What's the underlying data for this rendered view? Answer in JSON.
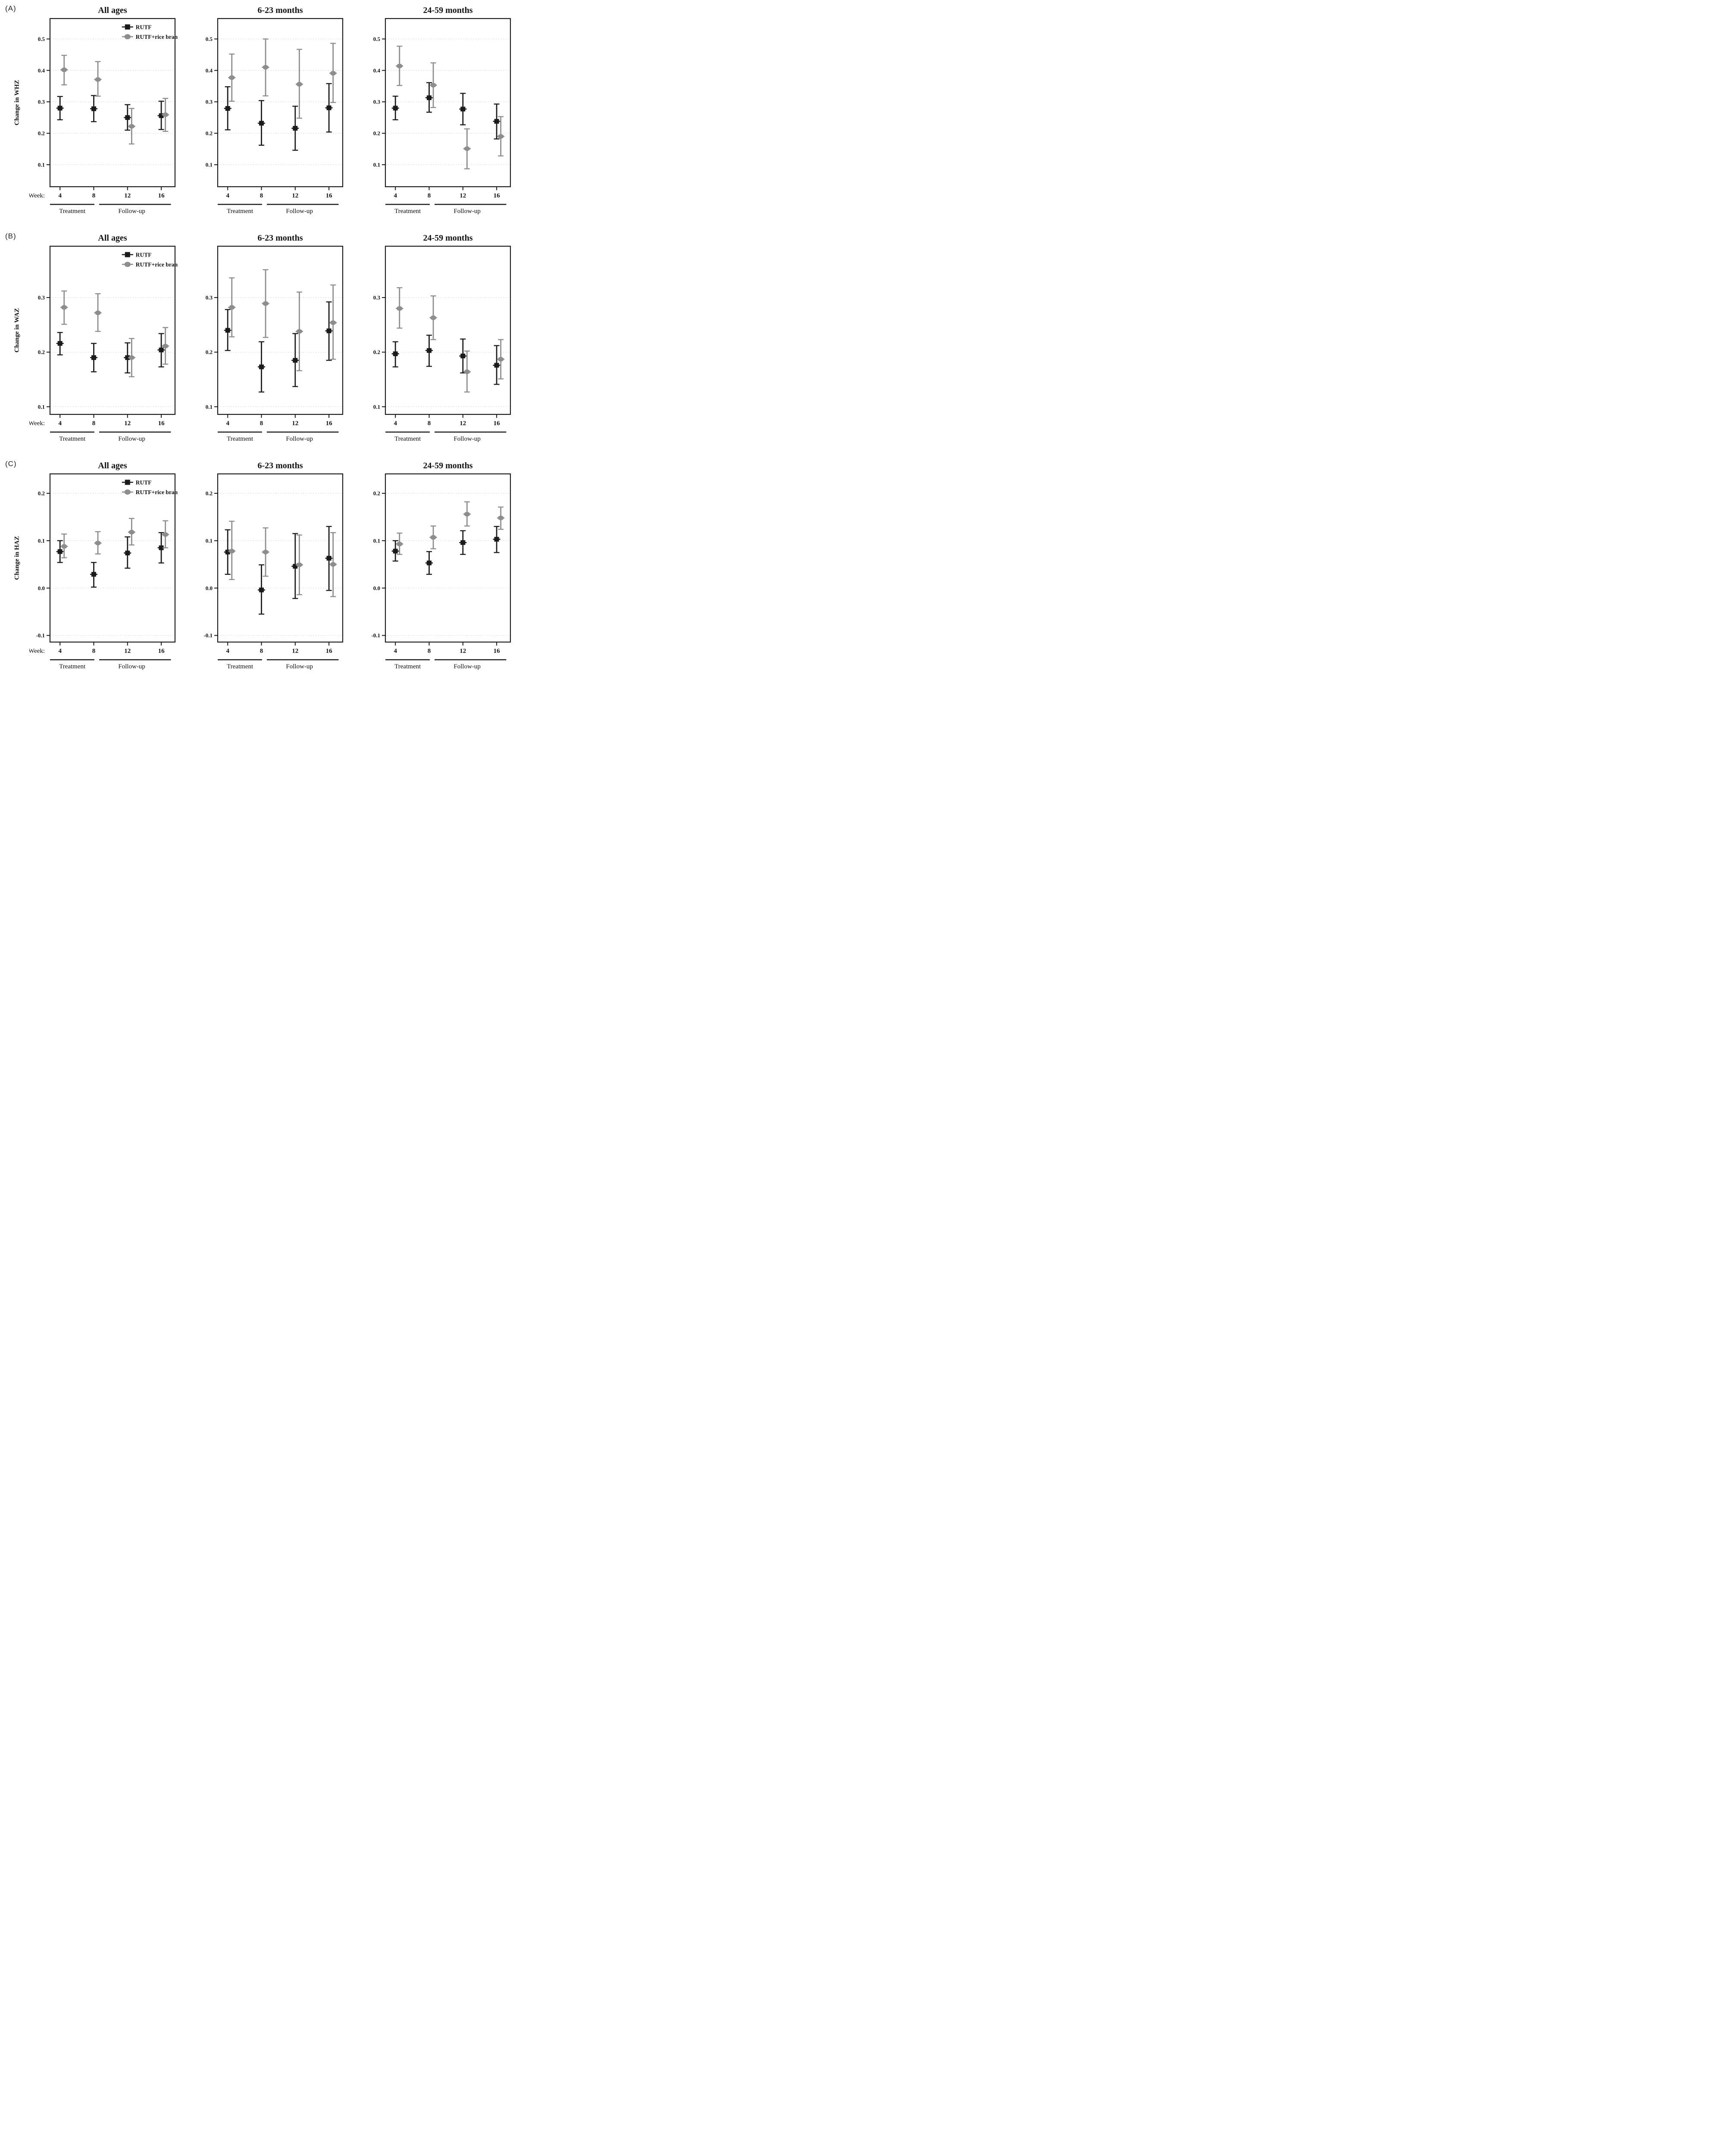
{
  "figure": {
    "panel_letters": [
      "(A)",
      "(B)",
      "(C)"
    ],
    "col_titles": [
      "All ages",
      "6-23 months",
      "24-59 months"
    ],
    "row_ylabels": [
      "Change in WHZ",
      "Change in WAZ",
      "Change in HAZ"
    ],
    "week_axis_label": "Week:",
    "weeks": [
      4,
      8,
      12,
      16
    ],
    "phases": [
      {
        "label": "Treatment",
        "weeks": [
          4,
          8
        ]
      },
      {
        "label": "Follow-up",
        "weeks": [
          12,
          16
        ]
      }
    ],
    "legend": [
      {
        "label": "RUTF",
        "marker": "square",
        "color": "#1b1b1b"
      },
      {
        "label": "RUTF+rice bran",
        "marker": "circle",
        "color": "#8d8d8d"
      }
    ],
    "colors": {
      "rutf": "#1b1b1b",
      "rice_bran": "#8d8d8d",
      "grid": "#c3c3c3",
      "frame": "#1a1a1a",
      "background": "#ffffff"
    }
  },
  "chart_data": [
    {
      "type": "scatter",
      "title": "All ages",
      "outcome": "WHZ",
      "ylabel": "Change in WHZ",
      "x": [
        4,
        8,
        12,
        16
      ],
      "xtick_labels": [
        "4",
        "8",
        "12",
        "16"
      ],
      "ylim": [
        0.03,
        0.565
      ],
      "yticks": [
        0.5,
        0.4,
        0.3,
        0.2,
        0.1
      ],
      "ytick_labels": [
        "0.5",
        "0.4",
        "0.3",
        "0.2",
        "0.1"
      ],
      "grid": true,
      "legend_position": "top-right",
      "show_legend": true,
      "show_week_prefix": true,
      "series": [
        {
          "name": "RUTF",
          "marker": "square",
          "color": "#1b1b1b",
          "y": [
            0.28,
            0.278,
            0.25,
            0.256
          ],
          "ci_low": [
            0.243,
            0.237,
            0.21,
            0.212
          ],
          "ci_high": [
            0.317,
            0.32,
            0.291,
            0.302
          ]
        },
        {
          "name": "RUTF+rice bran",
          "marker": "circle",
          "color": "#8d8d8d",
          "y": [
            0.402,
            0.371,
            0.222,
            0.259
          ],
          "ci_low": [
            0.354,
            0.318,
            0.166,
            0.206
          ],
          "ci_high": [
            0.448,
            0.428,
            0.279,
            0.311
          ]
        }
      ]
    },
    {
      "type": "scatter",
      "title": "6-23 months",
      "outcome": "WHZ",
      "ylabel": "Change in WHZ",
      "x": [
        4,
        8,
        12,
        16
      ],
      "xtick_labels": [
        "4",
        "8",
        "12",
        "16"
      ],
      "ylim": [
        0.03,
        0.565
      ],
      "yticks": [
        0.5,
        0.4,
        0.3,
        0.2,
        0.1
      ],
      "ytick_labels": [
        "0.5",
        "0.4",
        "0.3",
        "0.2",
        "0.1"
      ],
      "grid": true,
      "show_legend": false,
      "show_week_prefix": false,
      "series": [
        {
          "name": "RUTF",
          "marker": "square",
          "color": "#1b1b1b",
          "y": [
            0.279,
            0.232,
            0.216,
            0.281
          ],
          "ci_low": [
            0.211,
            0.162,
            0.146,
            0.204
          ],
          "ci_high": [
            0.348,
            0.304,
            0.286,
            0.358
          ]
        },
        {
          "name": "RUTF+rice bran",
          "marker": "circle",
          "color": "#8d8d8d",
          "y": [
            0.377,
            0.41,
            0.356,
            0.391
          ],
          "ci_low": [
            0.302,
            0.319,
            0.248,
            0.298
          ],
          "ci_high": [
            0.452,
            0.5,
            0.467,
            0.486
          ]
        }
      ]
    },
    {
      "type": "scatter",
      "title": "24-59 months",
      "outcome": "WHZ",
      "ylabel": "Change in WHZ",
      "x": [
        4,
        8,
        12,
        16
      ],
      "xtick_labels": [
        "4",
        "8",
        "12",
        "16"
      ],
      "ylim": [
        0.03,
        0.565
      ],
      "yticks": [
        0.5,
        0.4,
        0.3,
        0.2,
        0.1
      ],
      "ytick_labels": [
        "0.5",
        "0.4",
        "0.3",
        "0.2",
        "0.1"
      ],
      "grid": true,
      "show_legend": false,
      "show_week_prefix": false,
      "series": [
        {
          "name": "RUTF",
          "marker": "square",
          "color": "#1b1b1b",
          "y": [
            0.28,
            0.313,
            0.277,
            0.238
          ],
          "ci_low": [
            0.243,
            0.267,
            0.227,
            0.182
          ],
          "ci_high": [
            0.318,
            0.361,
            0.327,
            0.293
          ]
        },
        {
          "name": "RUTF+rice bran",
          "marker": "circle",
          "color": "#8d8d8d",
          "y": [
            0.414,
            0.353,
            0.151,
            0.19
          ],
          "ci_low": [
            0.352,
            0.282,
            0.087,
            0.128
          ],
          "ci_high": [
            0.477,
            0.424,
            0.214,
            0.253
          ]
        }
      ]
    },
    {
      "type": "scatter",
      "title": "All ages",
      "outcome": "WAZ",
      "ylabel": "Change in WAZ",
      "x": [
        4,
        8,
        12,
        16
      ],
      "xtick_labels": [
        "4",
        "8",
        "12",
        "16"
      ],
      "ylim": [
        0.086,
        0.394
      ],
      "yticks": [
        0.3,
        0.2,
        0.1
      ],
      "ytick_labels": [
        "0.3",
        "0.2",
        "0.1"
      ],
      "grid": true,
      "legend_position": "top-right",
      "show_legend": true,
      "show_week_prefix": true,
      "series": [
        {
          "name": "RUTF",
          "marker": "square",
          "color": "#1b1b1b",
          "y": [
            0.216,
            0.19,
            0.19,
            0.204
          ],
          "ci_low": [
            0.195,
            0.164,
            0.162,
            0.173
          ],
          "ci_high": [
            0.236,
            0.216,
            0.217,
            0.234
          ]
        },
        {
          "name": "RUTF+rice bran",
          "marker": "circle",
          "color": "#8d8d8d",
          "y": [
            0.282,
            0.272,
            0.19,
            0.211
          ],
          "ci_low": [
            0.251,
            0.238,
            0.155,
            0.178
          ],
          "ci_high": [
            0.312,
            0.307,
            0.225,
            0.245
          ]
        }
      ]
    },
    {
      "type": "scatter",
      "title": "6-23 months",
      "outcome": "WAZ",
      "ylabel": "Change in WAZ",
      "x": [
        4,
        8,
        12,
        16
      ],
      "xtick_labels": [
        "4",
        "8",
        "12",
        "16"
      ],
      "ylim": [
        0.086,
        0.394
      ],
      "yticks": [
        0.3,
        0.2,
        0.1
      ],
      "ytick_labels": [
        "0.3",
        "0.2",
        "0.1"
      ],
      "grid": true,
      "show_legend": false,
      "show_week_prefix": false,
      "series": [
        {
          "name": "RUTF",
          "marker": "square",
          "color": "#1b1b1b",
          "y": [
            0.24,
            0.173,
            0.185,
            0.239
          ],
          "ci_low": [
            0.203,
            0.127,
            0.137,
            0.185
          ],
          "ci_high": [
            0.278,
            0.219,
            0.234,
            0.292
          ]
        },
        {
          "name": "RUTF+rice bran",
          "marker": "circle",
          "color": "#8d8d8d",
          "y": [
            0.282,
            0.289,
            0.238,
            0.254
          ],
          "ci_low": [
            0.228,
            0.227,
            0.166,
            0.187
          ],
          "ci_high": [
            0.336,
            0.351,
            0.31,
            0.323
          ]
        }
      ]
    },
    {
      "type": "scatter",
      "title": "24-59 months",
      "outcome": "WAZ",
      "ylabel": "Change in WAZ",
      "x": [
        4,
        8,
        12,
        16
      ],
      "xtick_labels": [
        "4",
        "8",
        "12",
        "16"
      ],
      "ylim": [
        0.086,
        0.394
      ],
      "yticks": [
        0.3,
        0.2,
        0.1
      ],
      "ytick_labels": [
        "0.3",
        "0.2",
        "0.1"
      ],
      "grid": true,
      "show_legend": false,
      "show_week_prefix": false,
      "series": [
        {
          "name": "RUTF",
          "marker": "square",
          "color": "#1b1b1b",
          "y": [
            0.197,
            0.203,
            0.193,
            0.176
          ],
          "ci_low": [
            0.173,
            0.174,
            0.162,
            0.141
          ],
          "ci_high": [
            0.219,
            0.231,
            0.224,
            0.212
          ]
        },
        {
          "name": "RUTF+rice bran",
          "marker": "circle",
          "color": "#8d8d8d",
          "y": [
            0.28,
            0.263,
            0.164,
            0.187
          ],
          "ci_low": [
            0.244,
            0.223,
            0.127,
            0.151
          ],
          "ci_high": [
            0.318,
            0.303,
            0.202,
            0.223
          ]
        }
      ]
    },
    {
      "type": "scatter",
      "title": "All ages",
      "outcome": "HAZ",
      "ylabel": "Change in HAZ",
      "x": [
        4,
        8,
        12,
        16
      ],
      "xtick_labels": [
        "4",
        "8",
        "12",
        "16"
      ],
      "ylim": [
        -0.114,
        0.241
      ],
      "yticks": [
        0.2,
        0.1,
        0.0,
        -0.1
      ],
      "ytick_labels": [
        "0.2",
        "0.1",
        "0.0",
        "-0.1"
      ],
      "grid": true,
      "legend_position": "top-right",
      "show_legend": true,
      "show_week_prefix": true,
      "series": [
        {
          "name": "RUTF",
          "marker": "square",
          "color": "#1b1b1b",
          "y": [
            0.077,
            0.029,
            0.074,
            0.085
          ],
          "ci_low": [
            0.054,
            0.002,
            0.042,
            0.053
          ],
          "ci_high": [
            0.1,
            0.054,
            0.108,
            0.117
          ]
        },
        {
          "name": "RUTF+rice bran",
          "marker": "circle",
          "color": "#8d8d8d",
          "y": [
            0.088,
            0.095,
            0.118,
            0.113
          ],
          "ci_low": [
            0.064,
            0.072,
            0.091,
            0.085
          ],
          "ci_high": [
            0.114,
            0.119,
            0.147,
            0.142
          ]
        }
      ]
    },
    {
      "type": "scatter",
      "title": "6-23 months",
      "outcome": "HAZ",
      "ylabel": "Change in HAZ",
      "x": [
        4,
        8,
        12,
        16
      ],
      "xtick_labels": [
        "4",
        "8",
        "12",
        "16"
      ],
      "ylim": [
        -0.114,
        0.241
      ],
      "yticks": [
        0.2,
        0.1,
        0.0,
        -0.1
      ],
      "ytick_labels": [
        "0.2",
        "0.1",
        "0.0",
        "-0.1"
      ],
      "grid": true,
      "show_legend": false,
      "show_week_prefix": false,
      "series": [
        {
          "name": "RUTF",
          "marker": "square",
          "color": "#1b1b1b",
          "y": [
            0.076,
            -0.004,
            0.046,
            0.063
          ],
          "ci_low": [
            0.029,
            -0.055,
            -0.022,
            -0.005
          ],
          "ci_high": [
            0.123,
            0.049,
            0.115,
            0.13
          ]
        },
        {
          "name": "RUTF+rice bran",
          "marker": "circle",
          "color": "#8d8d8d",
          "y": [
            0.078,
            0.076,
            0.049,
            0.05
          ],
          "ci_low": [
            0.018,
            0.025,
            -0.014,
            -0.018
          ],
          "ci_high": [
            0.141,
            0.127,
            0.112,
            0.117
          ]
        }
      ]
    },
    {
      "type": "scatter",
      "title": "24-59 months",
      "outcome": "HAZ",
      "ylabel": "Change in HAZ",
      "x": [
        4,
        8,
        12,
        16
      ],
      "xtick_labels": [
        "4",
        "8",
        "12",
        "16"
      ],
      "ylim": [
        -0.114,
        0.241
      ],
      "yticks": [
        0.2,
        0.1,
        0.0,
        -0.1
      ],
      "ytick_labels": [
        "0.2",
        "0.1",
        "0.0",
        "-0.1"
      ],
      "grid": true,
      "show_legend": false,
      "show_week_prefix": false,
      "series": [
        {
          "name": "RUTF",
          "marker": "square",
          "color": "#1b1b1b",
          "y": [
            0.078,
            0.053,
            0.096,
            0.103
          ],
          "ci_low": [
            0.057,
            0.029,
            0.071,
            0.075
          ],
          "ci_high": [
            0.1,
            0.077,
            0.121,
            0.13
          ]
        },
        {
          "name": "RUTF+rice bran",
          "marker": "circle",
          "color": "#8d8d8d",
          "y": [
            0.093,
            0.107,
            0.156,
            0.148
          ],
          "ci_low": [
            0.071,
            0.083,
            0.131,
            0.124
          ],
          "ci_high": [
            0.116,
            0.131,
            0.182,
            0.171
          ]
        }
      ]
    }
  ]
}
